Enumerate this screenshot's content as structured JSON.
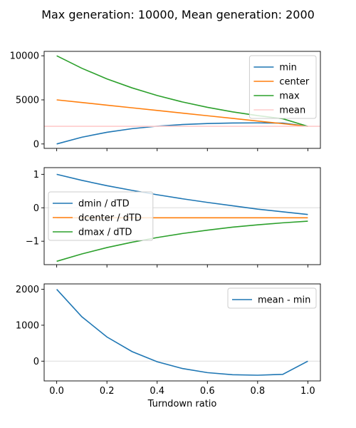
{
  "figure_title": "Max generation: 10000, Mean generation: 2000",
  "colors": {
    "min": "#1f77b4",
    "center": "#ff7f0e",
    "max": "#2ca02c",
    "mean": "#ffcccc",
    "zero_line": "#e0e0e0"
  },
  "chart_data": [
    {
      "type": "line",
      "xlim": [
        -0.05,
        1.05
      ],
      "ylim": [
        -500,
        10500
      ],
      "yticks": [
        0,
        5000,
        10000
      ],
      "yticklabels": [
        "0",
        "5000",
        "10000"
      ],
      "xticks": [
        0,
        0.2,
        0.4,
        0.6,
        0.8,
        1.0
      ],
      "show_xticklabels": false,
      "legend_position": "upper-right",
      "series": [
        {
          "name": "min",
          "color": "#1f77b4",
          "x": [
            0,
            0.1,
            0.2,
            0.3,
            0.4,
            0.5,
            0.6,
            0.7,
            0.8,
            0.9,
            1.0
          ],
          "y": [
            0,
            763,
            1327,
            1733,
            2016,
            2204,
            2319,
            2378,
            2391,
            2368,
            2000
          ]
        },
        {
          "name": "center",
          "color": "#ff7f0e",
          "x": [
            0,
            0.1,
            0.2,
            0.3,
            0.4,
            0.5,
            0.6,
            0.7,
            0.8,
            0.9,
            1.0
          ],
          "y": [
            5000,
            4700,
            4400,
            4100,
            3800,
            3500,
            3200,
            2900,
            2600,
            2300,
            2000
          ]
        },
        {
          "name": "max",
          "color": "#2ca02c",
          "x": [
            0,
            0.1,
            0.2,
            0.3,
            0.4,
            0.5,
            0.6,
            0.7,
            0.8,
            0.9,
            1.0
          ],
          "y": [
            10000,
            8584,
            7380,
            6360,
            5497,
            4767,
            4154,
            3642,
            3214,
            2860,
            2000
          ]
        },
        {
          "name": "mean",
          "color": "#ffcccc",
          "x": [
            -0.05,
            1.05
          ],
          "y": [
            2000,
            2000
          ]
        }
      ]
    },
    {
      "type": "line",
      "xlim": [
        -0.05,
        1.05
      ],
      "ylim": [
        -1.7,
        1.2
      ],
      "yticks": [
        -1,
        0,
        1
      ],
      "yticklabels": [
        "−1",
        "0",
        "1"
      ],
      "xticks": [
        0,
        0.2,
        0.4,
        0.6,
        0.8,
        1.0
      ],
      "show_xticklabels": false,
      "zero_line": 0,
      "legend_position": "center-left",
      "series": [
        {
          "name": "dmin / dTD",
          "color": "#1f77b4",
          "x": [
            0,
            0.1,
            0.2,
            0.3,
            0.4,
            0.5,
            0.6,
            0.7,
            0.8,
            0.9,
            1.0
          ],
          "y": [
            1.0,
            0.82,
            0.66,
            0.52,
            0.39,
            0.27,
            0.16,
            0.06,
            -0.04,
            -0.12,
            -0.2
          ]
        },
        {
          "name": "dcenter / dTD",
          "color": "#ff7f0e",
          "x": [
            0,
            1.0
          ],
          "y": [
            -0.3,
            -0.3
          ]
        },
        {
          "name": "dmax / dTD",
          "color": "#2ca02c",
          "x": [
            0,
            0.1,
            0.2,
            0.3,
            0.4,
            0.5,
            0.6,
            0.7,
            0.8,
            0.9,
            1.0
          ],
          "y": [
            -1.6,
            -1.38,
            -1.19,
            -1.03,
            -0.89,
            -0.77,
            -0.67,
            -0.58,
            -0.51,
            -0.45,
            -0.4
          ]
        }
      ]
    },
    {
      "type": "line",
      "xlim": [
        -0.05,
        1.05
      ],
      "ylim": [
        -550,
        2150
      ],
      "yticks": [
        0,
        1000,
        2000
      ],
      "yticklabels": [
        "0",
        "1000",
        "2000"
      ],
      "xticks": [
        0,
        0.2,
        0.4,
        0.6,
        0.8,
        1.0
      ],
      "xticklabels": [
        "0.0",
        "0.2",
        "0.4",
        "0.6",
        "0.8",
        "1.0"
      ],
      "show_xticklabels": true,
      "xlabel": "Turndown ratio",
      "zero_line": 0,
      "legend_position": "upper-right",
      "series": [
        {
          "name": "mean - min",
          "color": "#1f77b4",
          "x": [
            0,
            0.1,
            0.2,
            0.3,
            0.4,
            0.5,
            0.6,
            0.7,
            0.8,
            0.9,
            1.0
          ],
          "y": [
            2000,
            1237,
            673,
            267,
            -16,
            -204,
            -319,
            -378,
            -391,
            -368,
            0
          ]
        }
      ]
    }
  ]
}
